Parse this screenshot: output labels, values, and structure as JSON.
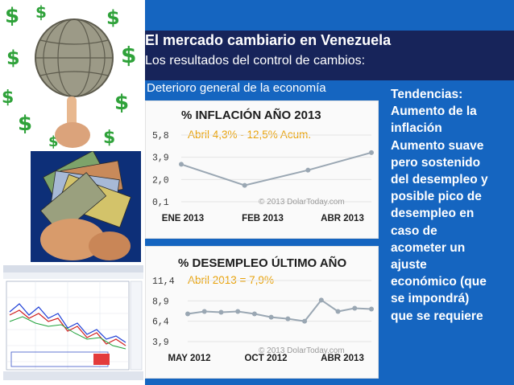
{
  "slide": {
    "title": "El mercado cambiario en Venezuela",
    "subtitle": "Los resultados del control de cambios:",
    "section_heading": "Deterioro general de la economía",
    "trends": {
      "label": "Tendencias:",
      "lines": [
        "Aumento de la",
        "inflación",
        "Aumento suave",
        "pero sostenido",
        "del desempleo y",
        "posible pico de",
        "desempleo en",
        "caso de",
        "acometer un",
        "ajuste",
        "económico (que",
        "se impondrá)",
        "que se requiere"
      ]
    },
    "colors": {
      "background": "#1565c0",
      "title_band": "#17245a",
      "line": "#9aa7b3",
      "note": "#e8a20a"
    },
    "images": [
      "money-globe-on-finger",
      "fanned-banknotes",
      "trading-chart-screenshot"
    ]
  },
  "chart_data": [
    {
      "type": "line",
      "title": "% INFLACIÓN AÑO 2013",
      "annotation": "Abril 4,3% - 12,5% Acum.",
      "credit": "© 2013 DolarToday.com",
      "y_ticks": [
        "5,8",
        "3,9",
        "2,0",
        "0,1"
      ],
      "ylim": [
        0.1,
        5.8
      ],
      "x_ticks": [
        "ENE 2013",
        "FEB 2013",
        "ABR 2013"
      ],
      "x": [
        0,
        1,
        2,
        3
      ],
      "values": [
        3.3,
        1.5,
        2.8,
        4.3
      ],
      "grid": true
    },
    {
      "type": "line",
      "title": "% DESEMPLEO ÚLTIMO AÑO",
      "annotation": "Abril 2013 = 7,9%",
      "credit": "© 2013 DolarToday.com",
      "y_ticks": [
        "11,4",
        "8,9",
        "6,4",
        "3,9"
      ],
      "ylim": [
        3.9,
        11.4
      ],
      "x_ticks": [
        "MAY 2012",
        "OCT 2012",
        "ABR 2013"
      ],
      "x": [
        0,
        1,
        2,
        3,
        4,
        5,
        6,
        7,
        8,
        9,
        10,
        11
      ],
      "values": [
        7.3,
        7.6,
        7.5,
        7.6,
        7.3,
        6.9,
        6.7,
        6.4,
        9.0,
        7.6,
        8.0,
        7.9
      ],
      "grid": true
    }
  ]
}
